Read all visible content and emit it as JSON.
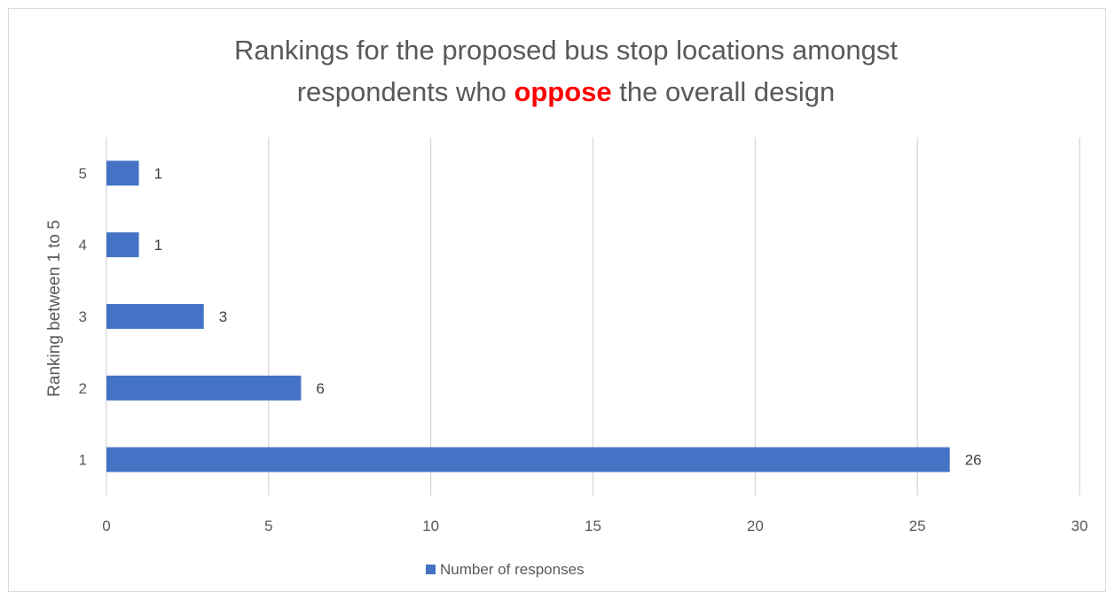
{
  "chart_data": {
    "type": "bar",
    "orientation": "horizontal",
    "title": {
      "line1": "Rankings for the proposed bus stop locations amongst",
      "line2_before": "respondents who ",
      "line2_highlight": "oppose",
      "line2_after": " the overall design"
    },
    "categories": [
      "1",
      "2",
      "3",
      "4",
      "5"
    ],
    "series": [
      {
        "name": "Number of responses",
        "values": [
          26,
          6,
          3,
          1,
          1
        ],
        "color": "#4472C4"
      }
    ],
    "xlim": [
      0,
      30
    ],
    "x_ticks": [
      "0",
      "5",
      "10",
      "15",
      "20",
      "25",
      "30"
    ],
    "ylabel": "Ranking between 1 to 5",
    "xlabel": "",
    "grid": "vertical",
    "legend": "bottom",
    "data_labels": true
  },
  "colors": {
    "bar": "#4472C4",
    "highlight": "#FF0000",
    "grid": "#d9d9d9",
    "text": "#595959"
  }
}
